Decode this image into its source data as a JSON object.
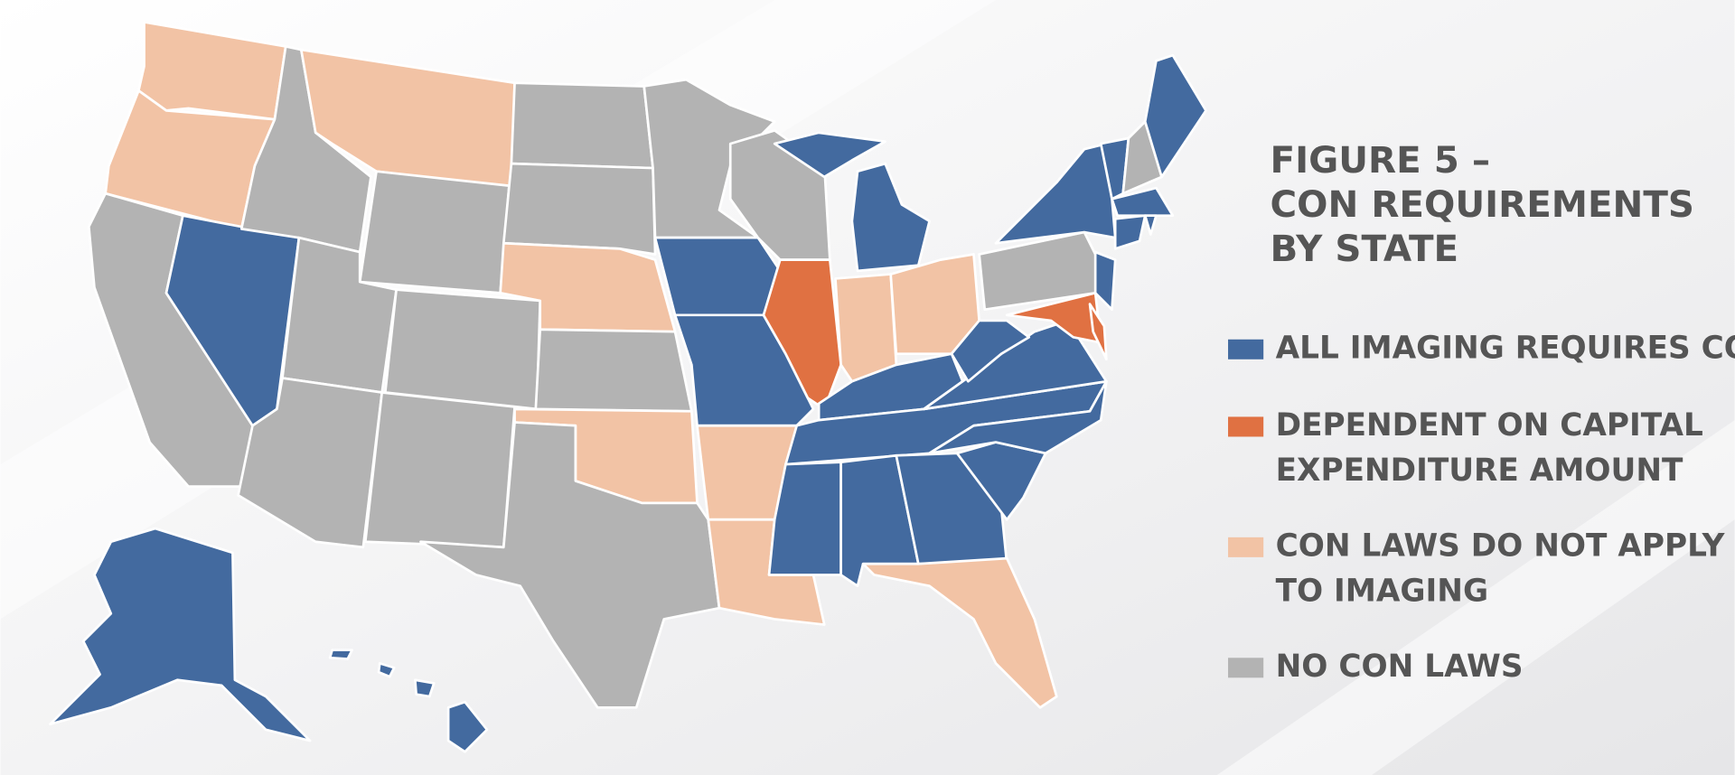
{
  "title": {
    "lines": [
      "FIGURE 5 –",
      "CON REQUIREMENTS",
      "BY STATE"
    ]
  },
  "legend": {
    "items": [
      {
        "label": [
          "ALL IMAGING REQUIRES CON"
        ],
        "color": "#436a9f"
      },
      {
        "label": [
          "DEPENDENT ON CAPITAL",
          "EXPENDITURE AMOUNT"
        ],
        "color": "#e07142"
      },
      {
        "label": [
          "CON LAWS DO NOT APPLY",
          "TO IMAGING"
        ],
        "color": "#f2c3a5"
      },
      {
        "label": [
          "NO CON LAWS"
        ],
        "color": "#b3b3b3"
      }
    ]
  }
}
